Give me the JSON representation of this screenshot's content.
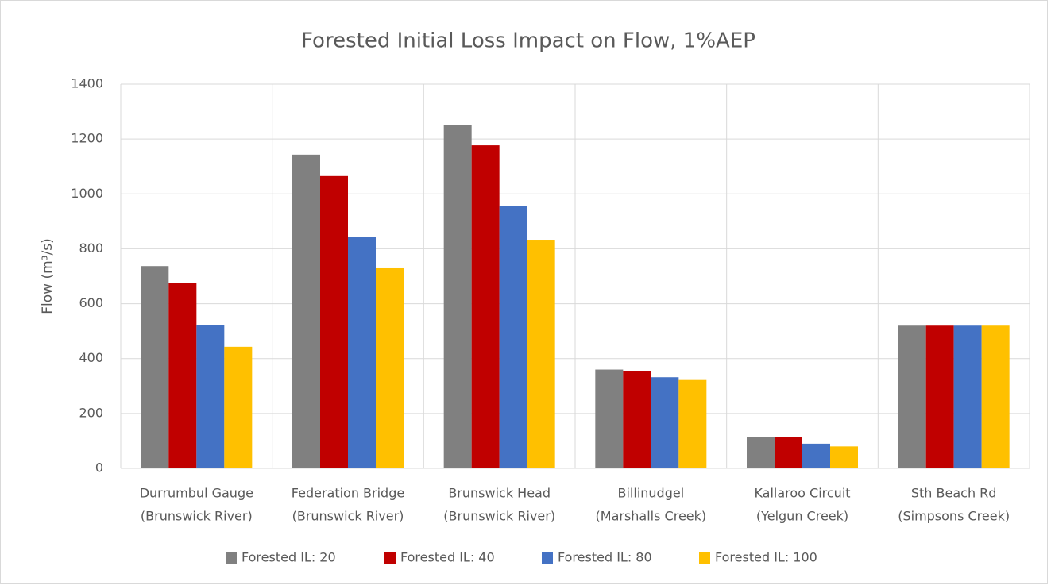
{
  "chart_data": {
    "type": "bar",
    "title": "Forested Initial Loss Impact on Flow, 1%AEP",
    "y_label": "Flow (m³/s)",
    "categories": [
      [
        "Durrumbul Gauge",
        "(Brunswick River)"
      ],
      [
        "Federation Bridge",
        "(Brunswick River)"
      ],
      [
        "Brunswick Head",
        "(Brunswick River)"
      ],
      [
        "Billinudgel",
        "(Marshalls Creek)"
      ],
      [
        "Kallaroo Circuit",
        "(Yelgun Creek)"
      ],
      [
        "Sth Beach Rd",
        "(Simpsons Creek)"
      ]
    ],
    "series": [
      {
        "name": "Forested IL: 20",
        "color": "#808080",
        "values": [
          737,
          1143,
          1250,
          360,
          113,
          520
        ]
      },
      {
        "name": "Forested IL: 40",
        "color": "#c00000",
        "values": [
          674,
          1065,
          1177,
          355,
          113,
          520
        ]
      },
      {
        "name": "Forested IL: 80",
        "color": "#4472c4",
        "values": [
          521,
          842,
          955,
          332,
          90,
          520
        ]
      },
      {
        "name": "Forested IL: 100",
        "color": "#ffc000",
        "values": [
          443,
          729,
          833,
          322,
          80,
          520
        ]
      }
    ],
    "ylim": [
      0,
      1400
    ],
    "yticks": [
      0,
      200,
      400,
      600,
      800,
      1000,
      1200,
      1400
    ],
    "grid": true,
    "legend": "bottom"
  }
}
